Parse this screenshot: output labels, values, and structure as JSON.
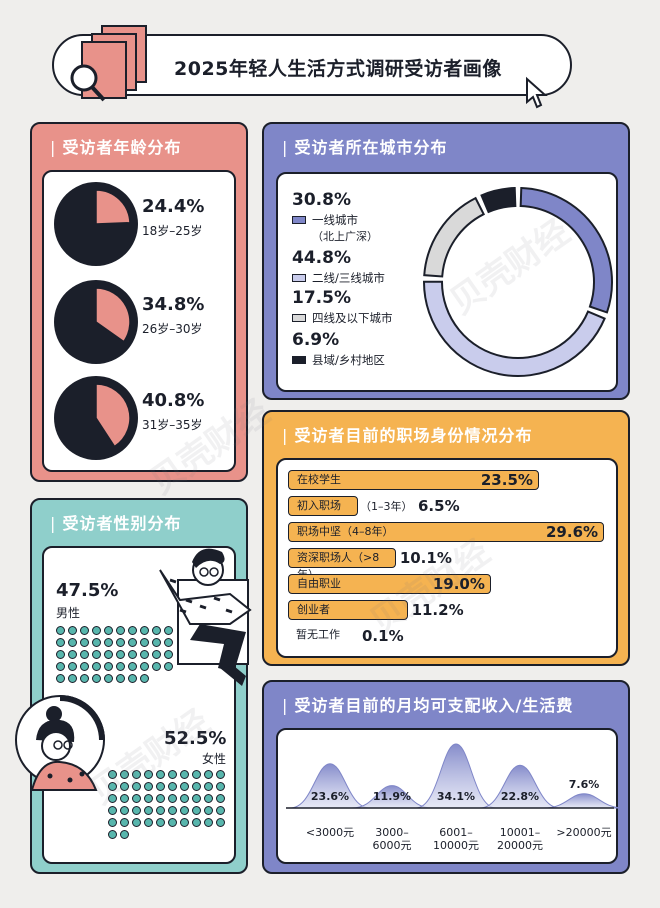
{
  "title": "2025年轻人生活方式调研受访者画像",
  "watermark": "贝壳财经",
  "colors": {
    "pink": "#e8928a",
    "navy": "#1b1f2a",
    "lavender": "#7f86c8",
    "orange": "#f5b351",
    "teal": "#8fcfcb",
    "tealDot": "#58b6ad"
  },
  "age": {
    "title": "受访者年龄分布",
    "items": [
      {
        "pct": "24.4%",
        "range": "18岁–25岁"
      },
      {
        "pct": "34.8%",
        "range": "26岁–30岁"
      },
      {
        "pct": "40.8%",
        "range": "31岁–35岁"
      }
    ]
  },
  "city": {
    "title": "受访者所在城市分布",
    "items": [
      {
        "pct": "30.8%",
        "label": "一线城市",
        "sub": "（北上广深）",
        "color": "#7f86c8"
      },
      {
        "pct": "44.8%",
        "label": "二线/三线城市",
        "sub": "",
        "color": "#c9ccec"
      },
      {
        "pct": "17.5%",
        "label": "四线及以下城市",
        "sub": "",
        "color": "#d9d9d9"
      },
      {
        "pct": "6.9%",
        "label": "县域/乡村地区",
        "sub": "",
        "color": "#1b1f2a"
      }
    ]
  },
  "job": {
    "title": "受访者目前的职场身份情况分布",
    "items": [
      {
        "label": "在校学生",
        "extra": "",
        "pct": "23.5%"
      },
      {
        "label": "初入职场",
        "extra": "（1–3年）",
        "pct": "6.5%"
      },
      {
        "label": "职场中坚（4–8年）",
        "extra": "",
        "pct": "29.6%"
      },
      {
        "label": "资深职场人（>8年）",
        "extra": "",
        "pct": "10.1%"
      },
      {
        "label": "自由职业",
        "extra": "",
        "pct": "19.0%"
      },
      {
        "label": "创业者",
        "extra": "",
        "pct": "11.2%"
      },
      {
        "label": "暂无工作",
        "extra": "",
        "pct": "0.1%"
      }
    ]
  },
  "gender": {
    "title": "受访者性别分布",
    "male": {
      "pct": "47.5%",
      "label": "男性"
    },
    "female": {
      "pct": "52.5%",
      "label": "女性"
    }
  },
  "income": {
    "title": "受访者目前的月均可支配收入/生活费",
    "items": [
      {
        "pct": "23.6%",
        "label": "<3000元"
      },
      {
        "pct": "11.9%",
        "label": "3000–\n6000元"
      },
      {
        "pct": "34.1%",
        "label": "6001–\n10000元"
      },
      {
        "pct": "22.8%",
        "label": "10001–\n20000元"
      },
      {
        "pct": "7.6%",
        "label": ">20000元"
      }
    ]
  },
  "chart_data": [
    {
      "type": "pie",
      "title": "受访者年龄分布",
      "categories": [
        "18岁–25岁",
        "26岁–30岁",
        "31岁–35岁"
      ],
      "values": [
        24.4,
        34.8,
        40.8
      ]
    },
    {
      "type": "pie",
      "title": "受访者所在城市分布",
      "categories": [
        "一线城市（北上广深）",
        "二线/三线城市",
        "四线及以下城市",
        "县域/乡村地区"
      ],
      "values": [
        30.8,
        44.8,
        17.5,
        6.9
      ]
    },
    {
      "type": "bar",
      "title": "受访者目前的职场身份情况分布",
      "categories": [
        "在校学生",
        "初入职场（1–3年）",
        "职场中坚（4–8年）",
        "资深职场人（>8年）",
        "自由职业",
        "创业者",
        "暂无工作"
      ],
      "values": [
        23.5,
        6.5,
        29.6,
        10.1,
        19.0,
        11.2,
        0.1
      ]
    },
    {
      "type": "bar",
      "title": "受访者性别分布",
      "categories": [
        "男性",
        "女性"
      ],
      "values": [
        47.5,
        52.5
      ]
    },
    {
      "type": "area",
      "title": "受访者目前的月均可支配收入/生活费",
      "categories": [
        "<3000元",
        "3000–6000元",
        "6001–10000元",
        "10001–20000元",
        ">20000元"
      ],
      "values": [
        23.6,
        11.9,
        34.1,
        22.8,
        7.6
      ]
    }
  ]
}
